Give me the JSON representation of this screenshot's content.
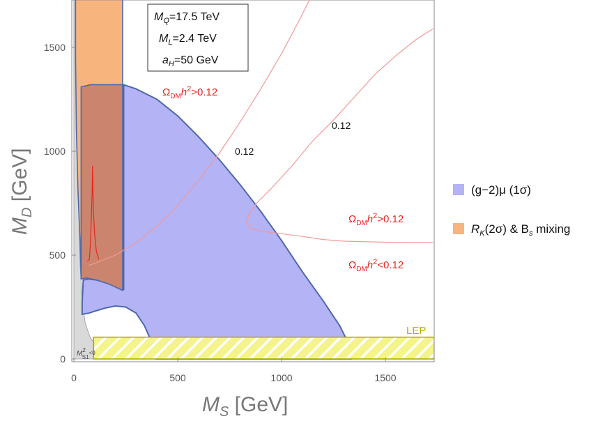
{
  "chart_data": {
    "type": "region_plot",
    "xlabel_main": "M",
    "xlabel_sub": "S",
    "xlabel_unit": " [GeV]",
    "ylabel_main": "M",
    "ylabel_sub": "D",
    "ylabel_unit": " [GeV]",
    "xlim": [
      0,
      1730
    ],
    "ylim": [
      0,
      1730
    ],
    "xticks": [
      0,
      500,
      1000,
      1500
    ],
    "yticks": [
      0,
      500,
      1000,
      1500
    ],
    "grid": false,
    "colors": {
      "g2_fill": "#b3b3f5",
      "g2_edge": "#4f68ad",
      "rk_fill": "#f7b47c",
      "rk_edge": "#4f68ad",
      "overlap_fill": "#c8836e",
      "gray_fill": "#d9d9d9",
      "relic_line": "#f29a9a",
      "red_spike": "#e8261f",
      "lep_fill": "#f4f48a",
      "lep_edge": "#a6a600"
    },
    "parameter_box": {
      "mq": {
        "base": "M",
        "sub": "Q",
        "value": "=17.5 TeV"
      },
      "ml": {
        "base": "M",
        "sub": "L",
        "value": "=2.4 TeV"
      },
      "ah": {
        "base": "a",
        "sub": "H",
        "value": "=50 GeV"
      }
    },
    "legend": [
      {
        "key": "g2",
        "text": "(g−2)μ (1σ)",
        "color": "#b3b3f5"
      },
      {
        "key": "rk",
        "text_a": "R",
        "text_sub": "K",
        "text_b": "(2σ) & B",
        "text_sub2": "s",
        "text_c": " mixing",
        "color": "#f7b47c"
      }
    ],
    "relic_labels": {
      "upper_left": {
        "omega": "Ω",
        "sub": "DM",
        "h": "h",
        "sup": "2",
        "rel": ">0.12"
      },
      "right_upper": {
        "omega": "Ω",
        "sub": "DM",
        "h": "h",
        "sup": "2",
        "rel": ">0.12"
      },
      "right_lower": {
        "omega": "Ω",
        "sub": "DM",
        "h": "h",
        "sup": "2",
        "rel": "<0.12"
      }
    },
    "contour_values": [
      "0.12",
      "0.12"
    ],
    "lep_label": "LEP",
    "lep_band": {
      "ymin": 0,
      "ymax": 105
    },
    "tachyon_label": {
      "m": "M",
      "sup": "2",
      "sub": "S1",
      "rel": "<0"
    },
    "regions": {
      "g2": [
        [
          240,
          1320
        ],
        [
          300,
          1300
        ],
        [
          400,
          1250
        ],
        [
          500,
          1170
        ],
        [
          600,
          1070
        ],
        [
          700,
          960
        ],
        [
          800,
          840
        ],
        [
          900,
          710
        ],
        [
          1000,
          570
        ],
        [
          1100,
          420
        ],
        [
          1200,
          280
        ],
        [
          1280,
          160
        ],
        [
          1320,
          80
        ],
        [
          1335,
          0
        ],
        [
          395,
          0
        ],
        [
          375,
          80
        ],
        [
          340,
          160
        ],
        [
          300,
          220
        ],
        [
          250,
          250
        ],
        [
          200,
          255
        ],
        [
          150,
          245
        ],
        [
          100,
          230
        ],
        [
          70,
          220
        ],
        [
          40,
          215
        ],
        [
          40,
          270
        ],
        [
          45,
          380
        ],
        [
          70,
          385
        ],
        [
          110,
          380
        ],
        [
          160,
          365
        ],
        [
          200,
          350
        ],
        [
          240,
          335
        ]
      ],
      "rk_full": [
        [
          0,
          1730
        ],
        [
          235,
          1730
        ],
        [
          235,
          330
        ],
        [
          210,
          345
        ],
        [
          170,
          360
        ],
        [
          110,
          380
        ],
        [
          60,
          390
        ],
        [
          35,
          390
        ],
        [
          30,
          560
        ],
        [
          20,
          800
        ],
        [
          12,
          1100
        ],
        [
          8,
          1450
        ],
        [
          8,
          1730
        ]
      ],
      "overlap": [
        [
          35,
          1310
        ],
        [
          80,
          1320
        ],
        [
          150,
          1320
        ],
        [
          235,
          1320
        ],
        [
          235,
          330
        ],
        [
          170,
          360
        ],
        [
          110,
          380
        ],
        [
          60,
          390
        ],
        [
          35,
          385
        ]
      ],
      "gray": [
        [
          0,
          1730
        ],
        [
          12,
          1730
        ],
        [
          15,
          1400
        ],
        [
          20,
          1000
        ],
        [
          25,
          700
        ],
        [
          30,
          450
        ],
        [
          40,
          280
        ],
        [
          55,
          170
        ],
        [
          80,
          100
        ],
        [
          120,
          50
        ],
        [
          200,
          18
        ],
        [
          400,
          5
        ],
        [
          400,
          0
        ],
        [
          0,
          0
        ]
      ]
    },
    "relic_curves": {
      "curve1": [
        [
          70,
          450
        ],
        [
          100,
          460
        ],
        [
          150,
          480
        ],
        [
          200,
          500
        ],
        [
          300,
          560
        ],
        [
          400,
          640
        ],
        [
          500,
          740
        ],
        [
          600,
          860
        ],
        [
          700,
          990
        ],
        [
          800,
          1140
        ],
        [
          900,
          1300
        ],
        [
          1000,
          1470
        ],
        [
          1080,
          1620
        ],
        [
          1135,
          1730
        ]
      ],
      "curve2": [
        [
          1730,
          560
        ],
        [
          1500,
          562
        ],
        [
          1300,
          567
        ],
        [
          1200,
          575
        ],
        [
          1100,
          590
        ],
        [
          1000,
          603
        ],
        [
          900,
          615
        ],
        [
          850,
          630
        ],
        [
          830,
          660
        ],
        [
          845,
          700
        ],
        [
          880,
          750
        ],
        [
          950,
          820
        ],
        [
          1050,
          930
        ],
        [
          1150,
          1050
        ],
        [
          1250,
          1150
        ],
        [
          1350,
          1260
        ],
        [
          1450,
          1370
        ],
        [
          1550,
          1460
        ],
        [
          1650,
          1540
        ],
        [
          1730,
          1590
        ]
      ],
      "spike": [
        [
          65,
          470
        ],
        [
          75,
          480
        ],
        [
          80,
          560
        ],
        [
          85,
          700
        ],
        [
          88,
          800
        ],
        [
          90,
          930
        ],
        [
          92,
          800
        ],
        [
          95,
          700
        ],
        [
          100,
          600
        ],
        [
          108,
          520
        ],
        [
          120,
          480
        ]
      ]
    }
  }
}
